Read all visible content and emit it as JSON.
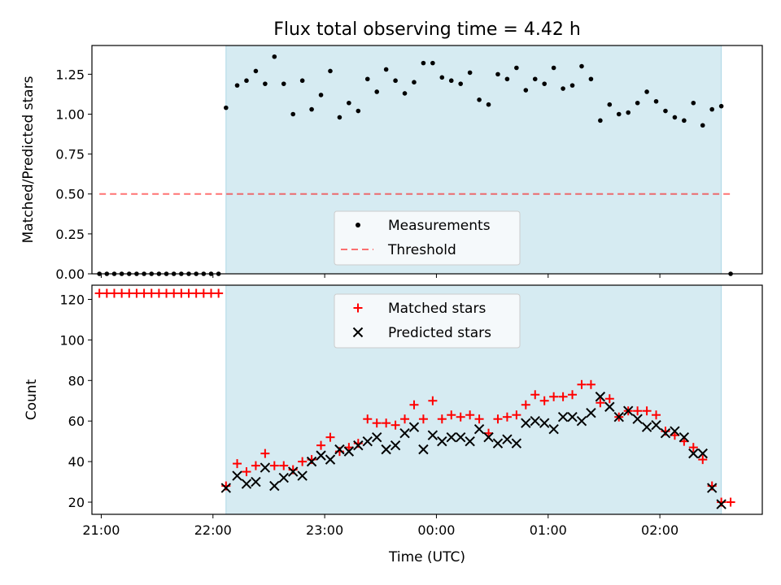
{
  "title": "Flux total observing time = 4.42 h",
  "xlabel": "Time (UTC)",
  "x_ticks": [
    "21:00",
    "22:00",
    "23:00",
    "00:00",
    "01:00",
    "02:00"
  ],
  "colors": {
    "band": "#add8e6",
    "measurements": "#000000",
    "threshold": "#ff0000",
    "matched": "#ff0000",
    "predicted": "#000000"
  },
  "chart_data": [
    {
      "type": "scatter",
      "ylabel": "Matched/Predicted stars",
      "xlim": [
        "20:55",
        "02:55"
      ],
      "ylim": [
        0,
        1.43
      ],
      "y_ticks": [
        "0.00",
        "0.25",
        "0.50",
        "0.75",
        "1.00",
        "1.25"
      ],
      "shaded_span": [
        "22:07",
        "02:33"
      ],
      "legend": {
        "placement": "lower center",
        "entries": [
          "Measurements",
          "Threshold"
        ]
      },
      "threshold": {
        "name": "Threshold",
        "value": 0.5,
        "x_range": [
          "20:59",
          "02:38"
        ]
      },
      "measurements": {
        "name": "Measurements",
        "points": [
          [
            "20:59",
            0.0
          ],
          [
            "21:03",
            0.0
          ],
          [
            "21:07",
            0.0
          ],
          [
            "21:11",
            0.0
          ],
          [
            "21:15",
            0.0
          ],
          [
            "21:19",
            0.0
          ],
          [
            "21:23",
            0.0
          ],
          [
            "21:27",
            0.0
          ],
          [
            "21:31",
            0.0
          ],
          [
            "21:35",
            0.0
          ],
          [
            "21:39",
            0.0
          ],
          [
            "21:43",
            0.0
          ],
          [
            "21:47",
            0.0
          ],
          [
            "21:51",
            0.0
          ],
          [
            "21:55",
            0.0
          ],
          [
            "21:59",
            0.0
          ],
          [
            "22:03",
            0.0
          ],
          [
            "22:07",
            1.04
          ],
          [
            "22:13",
            1.18
          ],
          [
            "22:18",
            1.21
          ],
          [
            "22:23",
            1.27
          ],
          [
            "22:28",
            1.19
          ],
          [
            "22:33",
            1.36
          ],
          [
            "22:38",
            1.19
          ],
          [
            "22:43",
            1.0
          ],
          [
            "22:48",
            1.21
          ],
          [
            "22:53",
            1.03
          ],
          [
            "22:58",
            1.12
          ],
          [
            "23:03",
            1.27
          ],
          [
            "23:08",
            0.98
          ],
          [
            "23:13",
            1.07
          ],
          [
            "23:18",
            1.02
          ],
          [
            "23:23",
            1.22
          ],
          [
            "23:28",
            1.14
          ],
          [
            "23:33",
            1.28
          ],
          [
            "23:38",
            1.21
          ],
          [
            "23:43",
            1.13
          ],
          [
            "23:48",
            1.2
          ],
          [
            "23:53",
            1.32
          ],
          [
            "23:58",
            1.32
          ],
          [
            "00:03",
            1.23
          ],
          [
            "00:08",
            1.21
          ],
          [
            "00:13",
            1.19
          ],
          [
            "00:18",
            1.26
          ],
          [
            "00:23",
            1.09
          ],
          [
            "00:28",
            1.06
          ],
          [
            "00:33",
            1.25
          ],
          [
            "00:38",
            1.22
          ],
          [
            "00:43",
            1.29
          ],
          [
            "00:48",
            1.15
          ],
          [
            "00:53",
            1.22
          ],
          [
            "00:58",
            1.19
          ],
          [
            "01:03",
            1.29
          ],
          [
            "01:08",
            1.16
          ],
          [
            "01:13",
            1.18
          ],
          [
            "01:18",
            1.3
          ],
          [
            "01:23",
            1.22
          ],
          [
            "01:28",
            0.96
          ],
          [
            "01:33",
            1.06
          ],
          [
            "01:38",
            1.0
          ],
          [
            "01:43",
            1.01
          ],
          [
            "01:48",
            1.07
          ],
          [
            "01:53",
            1.14
          ],
          [
            "01:58",
            1.08
          ],
          [
            "02:03",
            1.02
          ],
          [
            "02:08",
            0.98
          ],
          [
            "02:13",
            0.96
          ],
          [
            "02:18",
            1.07
          ],
          [
            "02:23",
            0.93
          ],
          [
            "02:28",
            1.03
          ],
          [
            "02:33",
            1.05
          ],
          [
            "02:38",
            0.0
          ]
        ]
      }
    },
    {
      "type": "scatter",
      "ylabel": "Count",
      "xlim": [
        "20:55",
        "02:55"
      ],
      "ylim": [
        14,
        127
      ],
      "y_ticks": [
        "20",
        "40",
        "60",
        "80",
        "100",
        "120"
      ],
      "shaded_span": [
        "22:07",
        "02:33"
      ],
      "legend": {
        "placement": "upper center",
        "entries": [
          "Matched stars",
          "Predicted stars"
        ]
      },
      "series": [
        {
          "name": "Matched stars",
          "marker": "plus",
          "points": [
            [
              "20:59",
              123
            ],
            [
              "21:03",
              123
            ],
            [
              "21:07",
              123
            ],
            [
              "21:11",
              123
            ],
            [
              "21:15",
              123
            ],
            [
              "21:19",
              123
            ],
            [
              "21:23",
              123
            ],
            [
              "21:27",
              123
            ],
            [
              "21:31",
              123
            ],
            [
              "21:35",
              123
            ],
            [
              "21:39",
              123
            ],
            [
              "21:43",
              123
            ],
            [
              "21:47",
              123
            ],
            [
              "21:51",
              123
            ],
            [
              "21:55",
              123
            ],
            [
              "21:59",
              123
            ],
            [
              "22:03",
              123
            ],
            [
              "22:07",
              28
            ],
            [
              "22:13",
              39
            ],
            [
              "22:18",
              35
            ],
            [
              "22:23",
              38
            ],
            [
              "22:28",
              44
            ],
            [
              "22:33",
              38
            ],
            [
              "22:38",
              38
            ],
            [
              "22:43",
              36
            ],
            [
              "22:48",
              40
            ],
            [
              "22:53",
              41
            ],
            [
              "22:58",
              48
            ],
            [
              "23:03",
              52
            ],
            [
              "23:08",
              45
            ],
            [
              "23:13",
              47
            ],
            [
              "23:18",
              49
            ],
            [
              "23:23",
              61
            ],
            [
              "23:28",
              59
            ],
            [
              "23:33",
              59
            ],
            [
              "23:38",
              58
            ],
            [
              "23:43",
              61
            ],
            [
              "23:48",
              68
            ],
            [
              "23:53",
              61
            ],
            [
              "23:58",
              70
            ],
            [
              "00:03",
              61
            ],
            [
              "00:08",
              63
            ],
            [
              "00:13",
              62
            ],
            [
              "00:18",
              63
            ],
            [
              "00:23",
              61
            ],
            [
              "00:28",
              54
            ],
            [
              "00:33",
              61
            ],
            [
              "00:38",
              62
            ],
            [
              "00:43",
              63
            ],
            [
              "00:48",
              68
            ],
            [
              "00:53",
              73
            ],
            [
              "00:58",
              70
            ],
            [
              "01:03",
              72
            ],
            [
              "01:08",
              72
            ],
            [
              "01:13",
              73
            ],
            [
              "01:18",
              78
            ],
            [
              "01:23",
              78
            ],
            [
              "01:28",
              69
            ],
            [
              "01:33",
              71
            ],
            [
              "01:38",
              62
            ],
            [
              "01:43",
              65
            ],
            [
              "01:48",
              65
            ],
            [
              "01:53",
              65
            ],
            [
              "01:58",
              63
            ],
            [
              "02:03",
              55
            ],
            [
              "02:08",
              53
            ],
            [
              "02:13",
              50
            ],
            [
              "02:18",
              47
            ],
            [
              "02:23",
              41
            ],
            [
              "02:28",
              28
            ],
            [
              "02:33",
              20
            ],
            [
              "02:38",
              20
            ]
          ]
        },
        {
          "name": "Predicted stars",
          "marker": "x",
          "points": [
            [
              "22:07",
              27
            ],
            [
              "22:13",
              33
            ],
            [
              "22:18",
              29
            ],
            [
              "22:23",
              30
            ],
            [
              "22:28",
              37
            ],
            [
              "22:33",
              28
            ],
            [
              "22:38",
              32
            ],
            [
              "22:43",
              35
            ],
            [
              "22:48",
              33
            ],
            [
              "22:53",
              40
            ],
            [
              "22:58",
              43
            ],
            [
              "23:03",
              41
            ],
            [
              "23:08",
              46
            ],
            [
              "23:13",
              45
            ],
            [
              "23:18",
              48
            ],
            [
              "23:23",
              50
            ],
            [
              "23:28",
              52
            ],
            [
              "23:33",
              46
            ],
            [
              "23:38",
              48
            ],
            [
              "23:43",
              54
            ],
            [
              "23:48",
              57
            ],
            [
              "23:53",
              46
            ],
            [
              "23:58",
              53
            ],
            [
              "00:03",
              50
            ],
            [
              "00:08",
              52
            ],
            [
              "00:13",
              52
            ],
            [
              "00:18",
              50
            ],
            [
              "00:23",
              56
            ],
            [
              "00:28",
              52
            ],
            [
              "00:33",
              49
            ],
            [
              "00:38",
              51
            ],
            [
              "00:43",
              49
            ],
            [
              "00:48",
              59
            ],
            [
              "00:53",
              60
            ],
            [
              "00:58",
              59
            ],
            [
              "01:03",
              56
            ],
            [
              "01:08",
              62
            ],
            [
              "01:13",
              62
            ],
            [
              "01:18",
              60
            ],
            [
              "01:23",
              64
            ],
            [
              "01:28",
              72
            ],
            [
              "01:33",
              67
            ],
            [
              "01:38",
              62
            ],
            [
              "01:43",
              65
            ],
            [
              "01:48",
              61
            ],
            [
              "01:53",
              57
            ],
            [
              "01:58",
              58
            ],
            [
              "02:03",
              54
            ],
            [
              "02:08",
              55
            ],
            [
              "02:13",
              52
            ],
            [
              "02:18",
              44
            ],
            [
              "02:23",
              44
            ],
            [
              "02:28",
              27
            ],
            [
              "02:33",
              19
            ]
          ]
        }
      ]
    }
  ]
}
